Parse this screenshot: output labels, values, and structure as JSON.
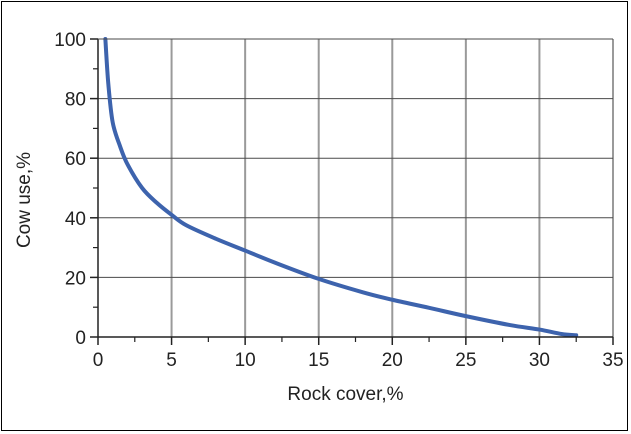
{
  "chart_data": {
    "type": "line",
    "title": "",
    "xlabel": "Rock cover,%",
    "ylabel": "Cow use,%",
    "xlim": [
      0,
      35
    ],
    "ylim": [
      0,
      100
    ],
    "xticks": [
      0,
      5,
      10,
      15,
      20,
      25,
      30,
      35
    ],
    "yticks": [
      0,
      20,
      40,
      60,
      80,
      100
    ],
    "xtick_labels": [
      "0",
      "5",
      "10",
      "15",
      "20",
      "25",
      "30",
      "35"
    ],
    "ytick_labels": [
      "0",
      "20",
      "40",
      "60",
      "80",
      "100"
    ],
    "grid": true,
    "legend": "none",
    "series": [
      {
        "color": "#3d63ad",
        "x": [
          0.5,
          0.7,
          1.0,
          1.5,
          2.0,
          3.0,
          4.0,
          5.0,
          6.0,
          8.0,
          10.0,
          12.0,
          15.0,
          18.0,
          20.0,
          22.5,
          25.0,
          28.0,
          30.0,
          31.5,
          32.5
        ],
        "y": [
          100,
          85,
          72,
          64,
          58,
          50,
          45,
          41,
          37.5,
          33,
          29,
          25,
          19.5,
          15,
          12.5,
          9.8,
          7,
          4,
          2.5,
          1,
          0.6
        ]
      }
    ]
  }
}
